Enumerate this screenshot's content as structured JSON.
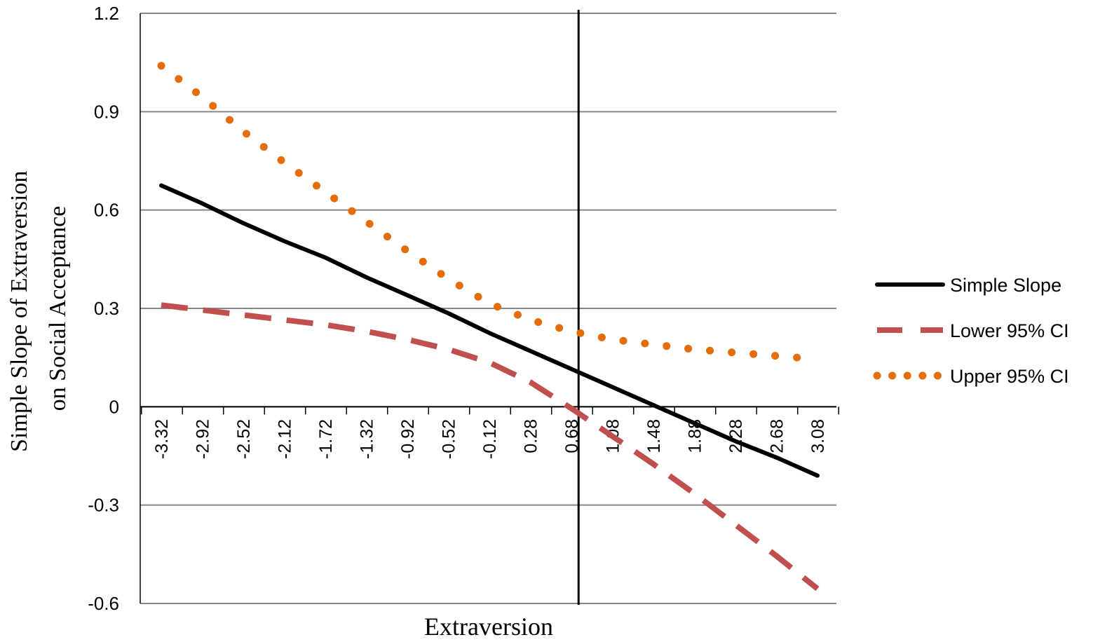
{
  "chart_data": {
    "type": "line",
    "xlabel": "Extraversion",
    "ylabel_lines": [
      "Simple Slope of Extraversion",
      "on Social Acceptance"
    ],
    "categories": [
      "-3.32",
      "-2.92",
      "-2.52",
      "-2.12",
      "-1.72",
      "-1.32",
      "-0.92",
      "-0.52",
      "-0.12",
      "0.28",
      "0.68",
      "1.08",
      "1.48",
      "1.88",
      "2.28",
      "2.68",
      "3.08"
    ],
    "x": [
      -3.32,
      -2.92,
      -2.52,
      -2.12,
      -1.72,
      -1.32,
      -0.92,
      -0.52,
      -0.12,
      0.28,
      0.68,
      1.08,
      1.48,
      1.88,
      2.28,
      2.68,
      3.08
    ],
    "ylim": [
      -0.6,
      1.2
    ],
    "yticks": [
      "1.2",
      "0.9",
      "0.6",
      "0.3",
      "0",
      "-0.3",
      "-0.6"
    ],
    "ytick_values": [
      1.2,
      0.9,
      0.6,
      0.3,
      0,
      -0.3,
      -0.6
    ],
    "grid": "horizontal",
    "legend_position": "right",
    "reference_line_x": 0.75,
    "series": [
      {
        "name": "Simple Slope",
        "style": "solid",
        "color": "#000000",
        "values": [
          0.675,
          0.62,
          0.56,
          0.505,
          0.455,
          0.395,
          0.34,
          0.285,
          0.225,
          0.17,
          0.115,
          0.06,
          0.005,
          -0.05,
          -0.105,
          -0.155,
          -0.21
        ]
      },
      {
        "name": "Lower 95% CI",
        "style": "dashed",
        "color": "#c0504d",
        "values": [
          0.31,
          0.295,
          0.28,
          0.265,
          0.25,
          0.23,
          0.205,
          0.175,
          0.135,
          0.075,
          -0.005,
          -0.09,
          -0.175,
          -0.265,
          -0.36,
          -0.455,
          -0.555
        ]
      },
      {
        "name": "Upper 95% CI",
        "style": "dotted",
        "color": "#e46c0a",
        "values": [
          1.04,
          0.945,
          0.84,
          0.745,
          0.655,
          0.565,
          0.475,
          0.39,
          0.315,
          0.265,
          0.23,
          0.205,
          0.19,
          0.175,
          0.165,
          0.155,
          0.145
        ]
      }
    ]
  }
}
